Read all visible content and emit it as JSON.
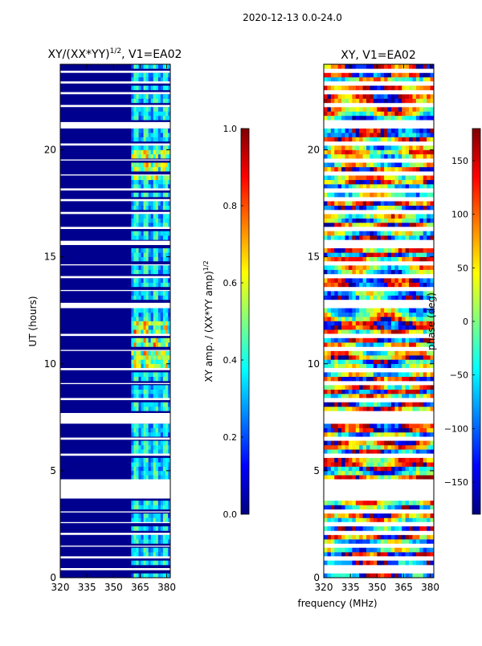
{
  "figure": {
    "suptitle": "2020-12-13 0.0-24.0",
    "shared_xlabel": "frequency (MHz)"
  },
  "chart_data": [
    {
      "type": "heatmap",
      "title_main": "XY/(XX*YY)",
      "title_sup": "1/2",
      "title_tail": ", V1=EA02",
      "ylabel": "UT (hours)",
      "xlim": [
        320,
        382
      ],
      "ylim": [
        0,
        24
      ],
      "xticks": [
        320,
        335,
        350,
        365,
        380
      ],
      "yticks": [
        0,
        5,
        10,
        15,
        20
      ],
      "background": "#00008f",
      "active_band_mhz": [
        360,
        382
      ],
      "colorbar": {
        "label_main": "XY amp. / (XX*YY amp)",
        "label_sup": "1/2",
        "range": [
          0.0,
          1.0
        ],
        "ticks": [
          "0.0",
          "0.2",
          "0.4",
          "0.6",
          "0.8",
          "1.0"
        ]
      }
    },
    {
      "type": "heatmap",
      "title": "XY, V1=EA02",
      "xlim": [
        320,
        382
      ],
      "ylim": [
        0,
        24
      ],
      "xticks": [
        320,
        335,
        350,
        365,
        380
      ],
      "yticks": [
        0,
        5,
        10,
        15,
        20
      ],
      "colorbar": {
        "label": "phase (deg)",
        "range": [
          -180,
          180
        ],
        "ticks": [
          "−150",
          "−100",
          "−50",
          "0",
          "50",
          "100",
          "150"
        ]
      }
    }
  ],
  "flagged_hours": [
    [
      4.6,
      3.7
    ],
    [
      7.7,
      7.2
    ],
    [
      12.6,
      12.85
    ],
    [
      15.55,
      15.75
    ],
    [
      21.0,
      21.3
    ],
    [
      0.35,
      0.45
    ],
    [
      0.9,
      1.0
    ],
    [
      1.45,
      1.5
    ],
    [
      2.0,
      2.1
    ],
    [
      2.55,
      2.6
    ],
    [
      3.05,
      3.1
    ],
    [
      5.7,
      5.8
    ],
    [
      6.45,
      6.55
    ],
    [
      8.3,
      8.4
    ],
    [
      9.05,
      9.1
    ],
    [
      9.7,
      9.8
    ],
    [
      10.6,
      10.65
    ],
    [
      11.3,
      11.4
    ],
    [
      13.4,
      13.45
    ],
    [
      14.0,
      14.1
    ],
    [
      14.6,
      14.65
    ],
    [
      16.3,
      16.4
    ],
    [
      17.0,
      17.1
    ],
    [
      17.6,
      17.7
    ],
    [
      18.1,
      18.2
    ],
    [
      18.8,
      18.85
    ],
    [
      19.5,
      19.55
    ],
    [
      20.2,
      20.3
    ],
    [
      22.0,
      22.1
    ],
    [
      22.6,
      22.7
    ],
    [
      23.1,
      23.2
    ],
    [
      23.6,
      23.7
    ]
  ]
}
